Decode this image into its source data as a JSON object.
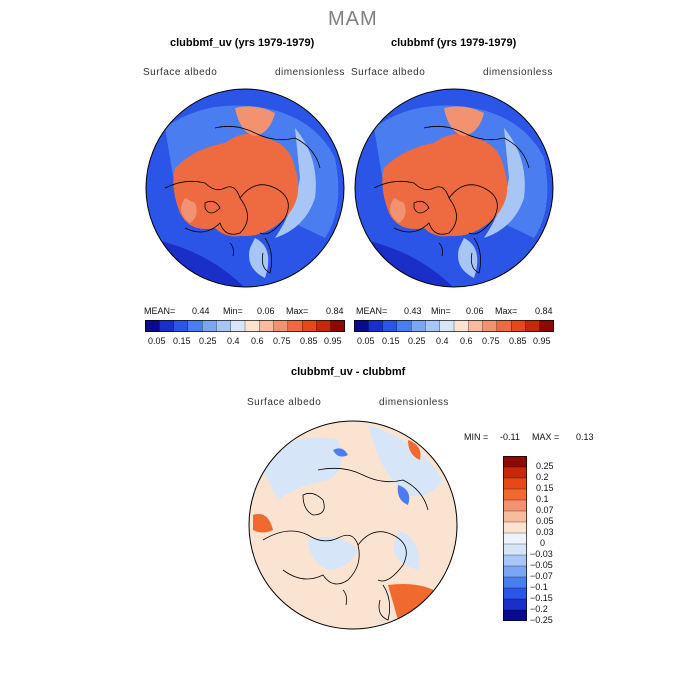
{
  "figure": {
    "season": "MAM"
  },
  "panels": [
    {
      "title": "clubbmf_uv (yrs 1979-1979)",
      "variable": "Surface albedo",
      "units": "dimensionless",
      "stats": {
        "mean_label": "MEAN=",
        "mean": "0.44",
        "min_label": "Min=",
        "min": "0.06",
        "max_label": "Max=",
        "max": "0.84"
      }
    },
    {
      "title": "clubbmf (yrs 1979-1979)",
      "variable": "Surface albedo",
      "units": "dimensionless",
      "stats": {
        "mean_label": "MEAN=",
        "mean": "0.43",
        "min_label": "Min=",
        "min": "0.06",
        "max_label": "Max=",
        "max": "0.84"
      }
    },
    {
      "title": "clubbmf_uv - clubbmf",
      "variable": "Surface albedo",
      "units": "dimensionless",
      "stats": {
        "min_label": "MIN =",
        "min": "-0.11",
        "max_label": "MAX =",
        "max": "0.13"
      }
    }
  ],
  "colorbar_abs": {
    "labels": [
      "0.05",
      "0.15",
      "0.25",
      "0.4",
      "0.6",
      "0.75",
      "0.85",
      "0.95"
    ],
    "colors": [
      "#0a0a8c",
      "#1a2fc8",
      "#2a55e6",
      "#4a7ef0",
      "#7aa6f3",
      "#a8c6f5",
      "#d6e6f8",
      "#fbe3d2",
      "#f7bba0",
      "#f39270",
      "#ee6a40",
      "#e64818",
      "#c42a08",
      "#8c0a04"
    ]
  },
  "colorbar_diff": {
    "labels": [
      "0.25",
      "0.2",
      "0.15",
      "0.1",
      "0.07",
      "0.05",
      "0.03",
      "0",
      "−0.03",
      "−0.05",
      "−0.07",
      "−0.1",
      "−0.15",
      "−0.2",
      "−0.25"
    ],
    "colors": [
      "#8c0a04",
      "#c42a08",
      "#e64818",
      "#f06a30",
      "#f39270",
      "#f7bba0",
      "#fbe3d2",
      "#eef3fb",
      "#d6e6f8",
      "#a8c6f5",
      "#7aa6f3",
      "#4a7ef0",
      "#2a55e6",
      "#1a2fc8",
      "#0a0a8c"
    ]
  },
  "map_colors": {
    "ocean_low": "#2a55e6",
    "ocean_mid": "#4a7ef0",
    "ocean_edge": "#1a2fc8",
    "ice_high": "#ee6a40",
    "ice_mid": "#f39270",
    "transition": "#a8c6f5",
    "diff_pos": "#fbe3d2",
    "diff_neg": "#d6e6f8",
    "diff_pos_strong": "#f06a30",
    "diff_neg_strong": "#4a7ef0"
  }
}
